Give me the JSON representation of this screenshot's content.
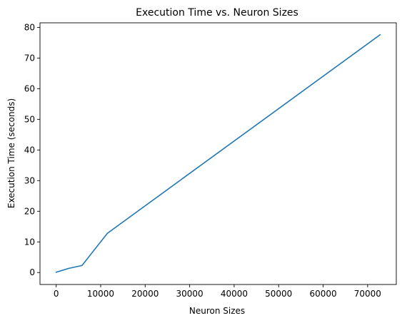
{
  "chart_data": {
    "type": "line",
    "title": "Execution Time vs. Neuron Sizes",
    "xlabel": "Neuron Sizes",
    "ylabel": "Execution Time (seconds)",
    "xlim": [
      -3640,
      76440
    ],
    "ylim": [
      -3.9,
      81.5
    ],
    "xticks": [
      0,
      10000,
      20000,
      30000,
      40000,
      50000,
      60000,
      70000
    ],
    "yticks": [
      0,
      10,
      20,
      30,
      40,
      50,
      60,
      70,
      80
    ],
    "grid": false,
    "color": "#1f77b4",
    "series": [
      {
        "x": [
          0,
          2900,
          5800,
          11500,
          72800
        ],
        "y": [
          0.1,
          1.4,
          2.3,
          12.8,
          77.6
        ]
      }
    ]
  }
}
